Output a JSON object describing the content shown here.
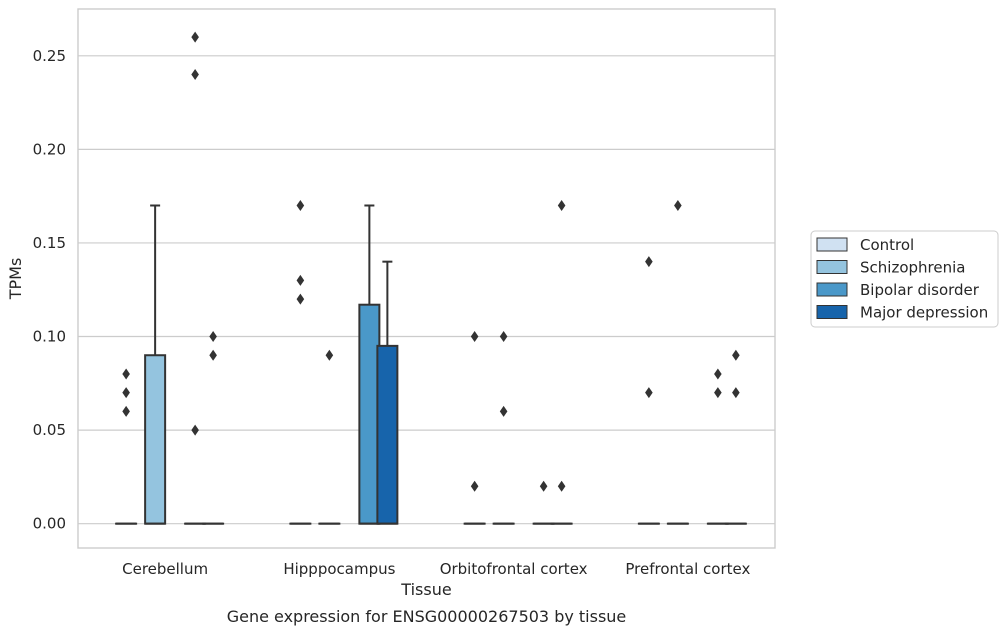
{
  "chart_data": {
    "type": "box",
    "title": "Gene expression for ENSG00000267503 by tissue",
    "xlabel": "Tissue",
    "ylabel": "TPMs",
    "ylim": [
      -0.013,
      0.275
    ],
    "yticks": [
      0.0,
      0.05,
      0.1,
      0.15,
      0.2,
      0.25
    ],
    "ytick_labels": [
      "0.00",
      "0.05",
      "0.10",
      "0.15",
      "0.20",
      "0.25"
    ],
    "categories": [
      "Cerebellum",
      "Hipppocampus",
      "Orbitofrontal cortex",
      "Prefrontal cortex"
    ],
    "grid": "horizontal",
    "legend_position": "right",
    "series": [
      {
        "name": "Control",
        "color": "#d0e1f2",
        "boxes": [
          {
            "q1": 0,
            "median": 0,
            "q3": 0,
            "whisker_low": 0,
            "whisker_high": 0,
            "outliers": [
              0.06,
              0.07,
              0.08
            ]
          },
          {
            "q1": 0,
            "median": 0,
            "q3": 0,
            "whisker_low": 0,
            "whisker_high": 0,
            "outliers": [
              0.12,
              0.13,
              0.17
            ]
          },
          {
            "q1": 0,
            "median": 0,
            "q3": 0,
            "whisker_low": 0,
            "whisker_high": 0,
            "outliers": [
              0.02,
              0.1
            ]
          },
          {
            "q1": 0,
            "median": 0,
            "q3": 0,
            "whisker_low": 0,
            "whisker_high": 0,
            "outliers": [
              0.07,
              0.14
            ]
          }
        ]
      },
      {
        "name": "Schizophrenia",
        "color": "#94c4df",
        "boxes": [
          {
            "q1": 0,
            "median": 0,
            "q3": 0.09,
            "whisker_low": 0,
            "whisker_high": 0.17,
            "outliers": []
          },
          {
            "q1": 0,
            "median": 0,
            "q3": 0,
            "whisker_low": 0,
            "whisker_high": 0,
            "outliers": [
              0.09
            ]
          },
          {
            "q1": 0,
            "median": 0,
            "q3": 0,
            "whisker_low": 0,
            "whisker_high": 0,
            "outliers": [
              0.06,
              0.1
            ]
          },
          {
            "q1": 0,
            "median": 0,
            "q3": 0,
            "whisker_low": 0,
            "whisker_high": 0,
            "outliers": [
              0.17
            ]
          }
        ]
      },
      {
        "name": "Bipolar disorder",
        "color": "#4a98c9",
        "boxes": [
          {
            "q1": 0,
            "median": 0,
            "q3": 0,
            "whisker_low": 0,
            "whisker_high": 0,
            "outliers": [
              0.05,
              0.24,
              0.26
            ]
          },
          {
            "q1": 0,
            "median": 0,
            "q3": 0.117,
            "whisker_low": 0,
            "whisker_high": 0.17,
            "outliers": []
          },
          {
            "q1": 0,
            "median": 0,
            "q3": 0,
            "whisker_low": 0,
            "whisker_high": 0,
            "outliers": [
              0.02
            ]
          },
          {
            "q1": 0,
            "median": 0,
            "q3": 0,
            "whisker_low": 0,
            "whisker_high": 0,
            "outliers": [
              0.07,
              0.08
            ]
          }
        ]
      },
      {
        "name": "Major depression",
        "color": "#1764ab",
        "boxes": [
          {
            "q1": 0,
            "median": 0,
            "q3": 0,
            "whisker_low": 0,
            "whisker_high": 0,
            "outliers": [
              0.09,
              0.1
            ]
          },
          {
            "q1": 0,
            "median": 0,
            "q3": 0.095,
            "whisker_low": 0,
            "whisker_high": 0.14,
            "outliers": []
          },
          {
            "q1": 0,
            "median": 0,
            "q3": 0,
            "whisker_low": 0,
            "whisker_high": 0,
            "outliers": [
              0.02,
              0.17
            ]
          },
          {
            "q1": 0,
            "median": 0,
            "q3": 0,
            "whisker_low": 0,
            "whisker_high": 0,
            "outliers": [
              0.07,
              0.09
            ]
          }
        ]
      }
    ]
  }
}
